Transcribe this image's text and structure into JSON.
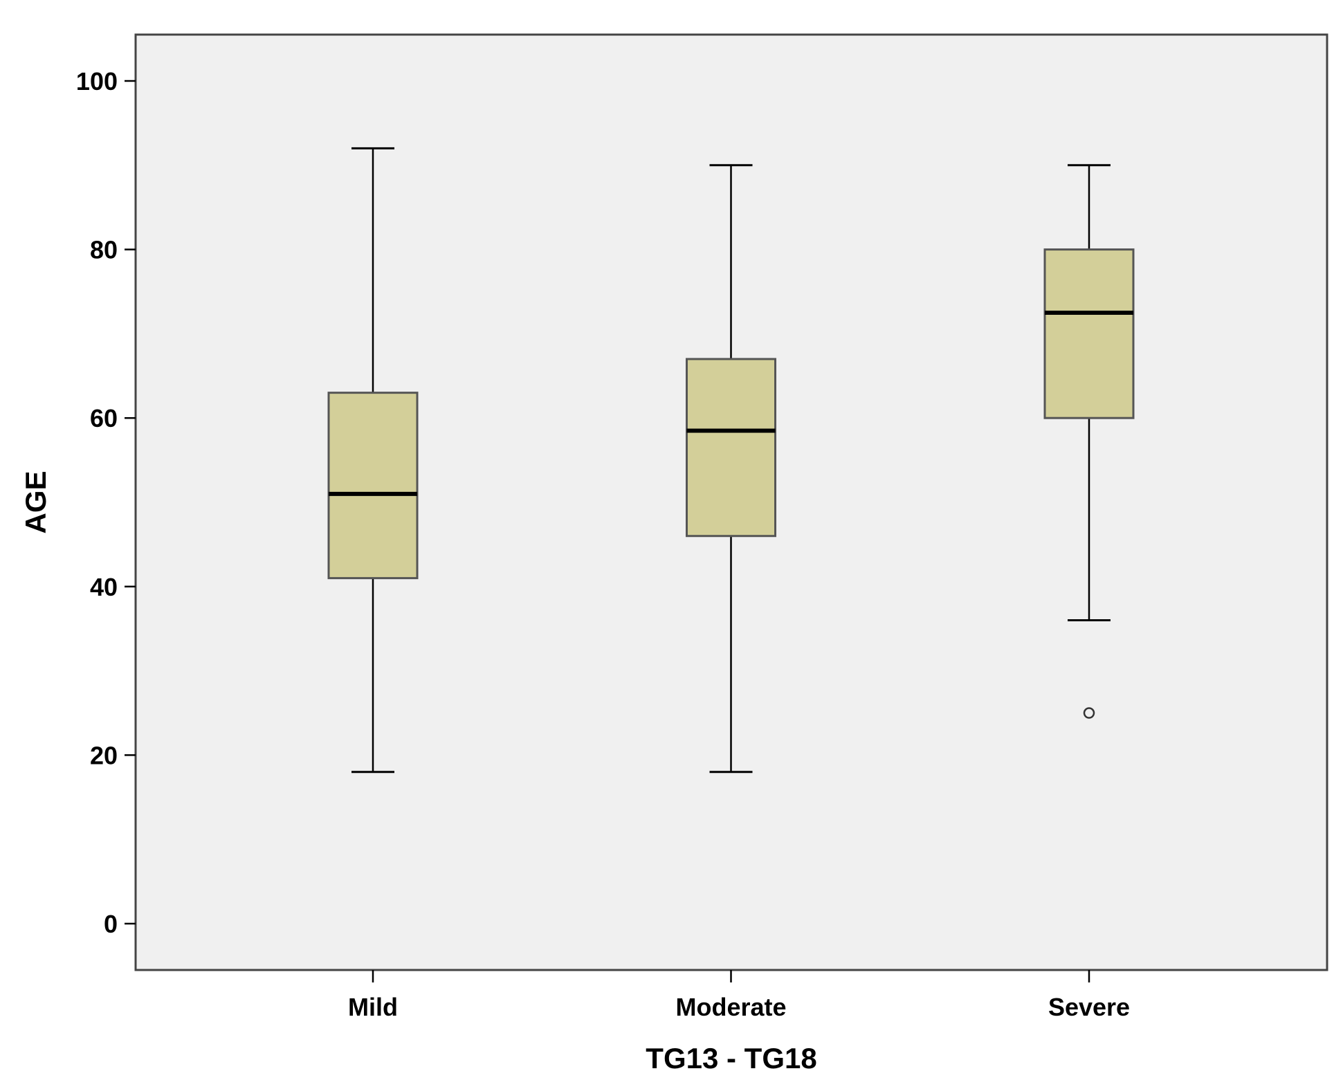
{
  "chart_data": {
    "type": "boxplot",
    "xlabel": "TG13 - TG18",
    "ylabel": "AGE",
    "ylim": [
      -5.5,
      105.5
    ],
    "yticks": [
      0,
      20,
      40,
      60,
      80,
      100
    ],
    "grid": false,
    "categories": [
      "Mild",
      "Moderate",
      "Severe"
    ],
    "boxes": [
      {
        "category": "Mild",
        "whisker_low": 18,
        "q1": 41,
        "median": 51,
        "q3": 63,
        "whisker_high": 92,
        "outliers": []
      },
      {
        "category": "Moderate",
        "whisker_low": 18,
        "q1": 46,
        "median": 58.5,
        "q3": 67,
        "whisker_high": 90,
        "outliers": []
      },
      {
        "category": "Severe",
        "whisker_low": 36,
        "q1": 60,
        "median": 72.5,
        "q3": 80,
        "whisker_high": 90,
        "outliers": [
          25
        ]
      }
    ],
    "colors": {
      "plot_background": "#f0f0f0",
      "box_fill": "#d3cf99",
      "box_stroke": "#555555",
      "line": "#000000"
    }
  }
}
